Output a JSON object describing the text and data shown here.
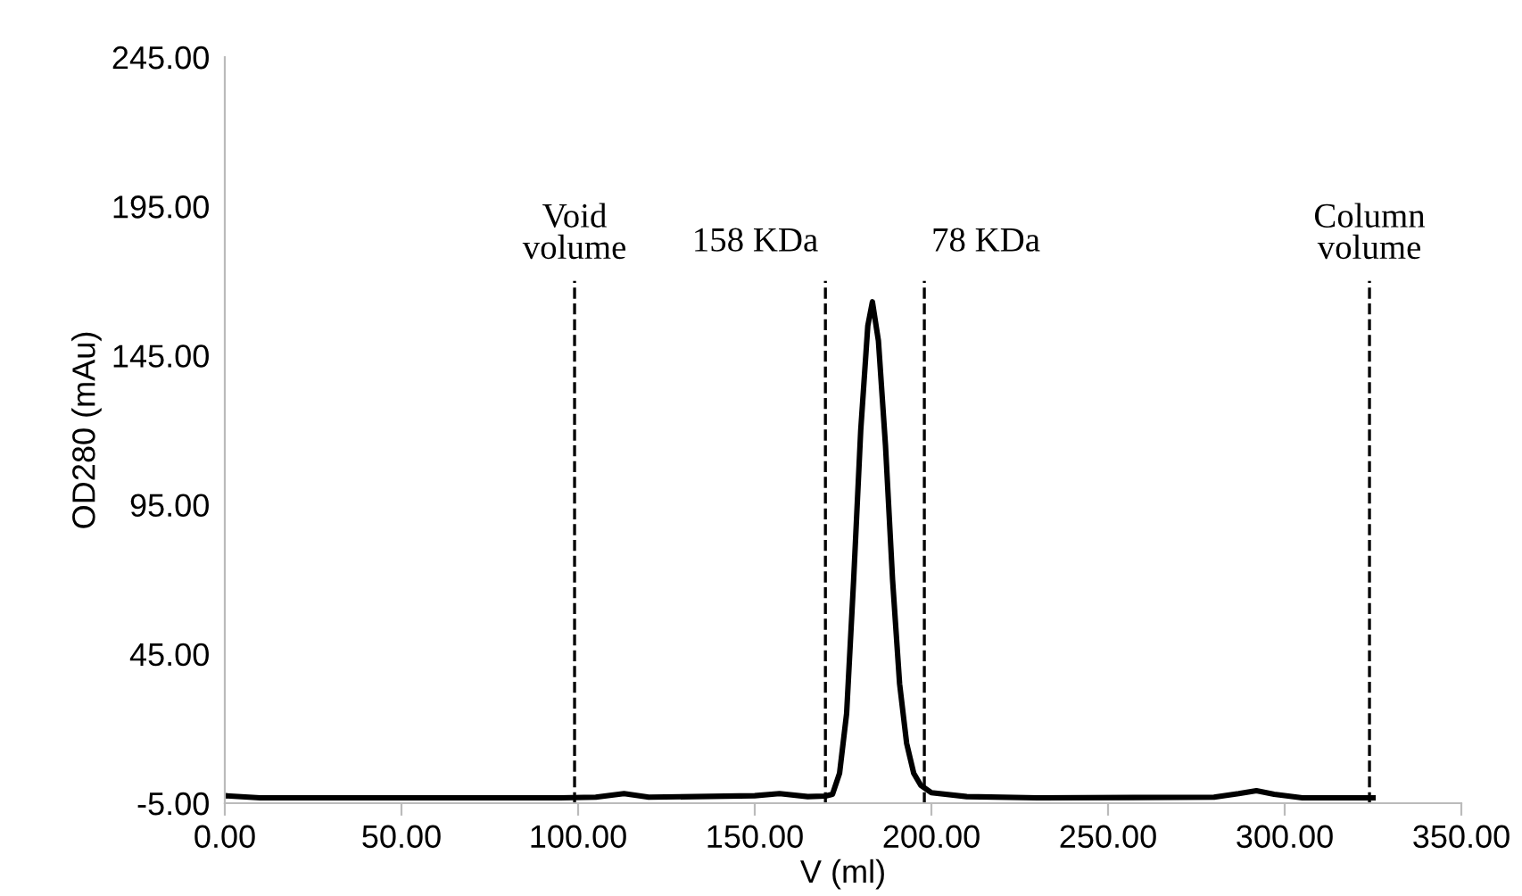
{
  "chart_data": {
    "type": "line",
    "xlabel": "V (ml)",
    "ylabel": "OD280 (mAu)",
    "x": [
      0,
      10,
      50,
      95,
      105,
      113,
      120,
      150,
      157,
      165,
      170,
      172,
      174,
      176,
      178,
      180,
      182,
      183.3,
      185,
      187,
      189,
      191,
      193,
      195,
      197,
      200,
      210,
      230,
      280,
      287,
      292,
      297,
      305,
      325
    ],
    "series": [
      {
        "color": "#000000",
        "values": [
          -2.5,
          -3.2,
          -3.2,
          -3.2,
          -3.0,
          -1.8,
          -3.0,
          -2.5,
          -1.8,
          -2.8,
          -2.6,
          -2.0,
          5,
          25,
          70,
          120,
          155,
          163,
          150,
          115,
          70,
          35,
          15,
          5,
          1,
          -1.5,
          -2.8,
          -3.2,
          -3.0,
          -1.8,
          -0.8,
          -2.0,
          -3.2,
          -3.2
        ]
      }
    ],
    "xlim": [
      0,
      350
    ],
    "ylim": [
      -5,
      245
    ],
    "xticks": [
      {
        "value": 0,
        "label": "0.00"
      },
      {
        "value": 50,
        "label": "50.00"
      },
      {
        "value": 100,
        "label": "100.00"
      },
      {
        "value": 150,
        "label": "150.00"
      },
      {
        "value": 200,
        "label": "200.00"
      },
      {
        "value": 250,
        "label": "250.00"
      },
      {
        "value": 300,
        "label": "300.00"
      },
      {
        "value": 350,
        "label": "350.00"
      }
    ],
    "yticks": [
      {
        "value": -5,
        "label": "-5.00"
      },
      {
        "value": 45,
        "label": "45.00"
      },
      {
        "value": 95,
        "label": "95.00"
      },
      {
        "value": 145,
        "label": "145.00"
      },
      {
        "value": 195,
        "label": "195.00"
      },
      {
        "value": 245,
        "label": "245.00"
      }
    ],
    "ref_lines": [
      {
        "axis": "x",
        "value": 99,
        "label": "Void\nvolume",
        "line_style": "dashed"
      },
      {
        "axis": "x",
        "value": 170,
        "label": "158 KDa",
        "line_style": "dashed"
      },
      {
        "axis": "x",
        "value": 198,
        "label": "78 KDa",
        "line_style": "dashed"
      },
      {
        "axis": "x",
        "value": 324,
        "label": "Column\nvolume",
        "line_style": "dashed"
      }
    ],
    "grid": false,
    "legend": false,
    "marker": "none",
    "line_style": "solid"
  }
}
